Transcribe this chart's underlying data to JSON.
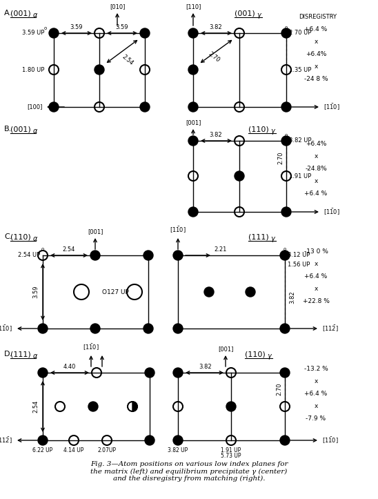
{
  "title": "Fig. 3—Atom positions on various low index planes for\nthe matrix (left) and equilibrium precipitate γ (center)\nand the disregistry from matching (right).",
  "disregistry_A": [
    "+6.4 %",
    "x",
    "+6.4%",
    "x",
    "-24 8 %"
  ],
  "disregistry_B": [
    "+6.4%",
    "x",
    "-24.8%",
    "x",
    "+6.4 %"
  ],
  "disregistry_C": [
    "-13 0 %",
    "x",
    "+6.4 %",
    "x",
    "+22.8 %"
  ],
  "disregistry_D": [
    "-13.2 %",
    "x",
    "+6.4 %",
    "x",
    "-7.9 %"
  ],
  "atom_r": 7,
  "lw": 1.0
}
